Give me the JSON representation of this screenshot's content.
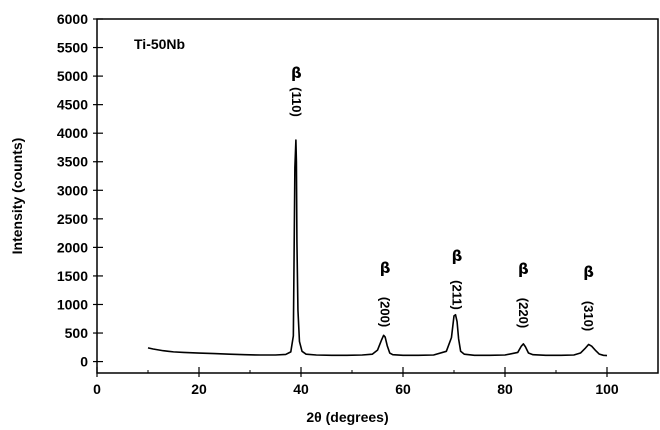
{
  "chart_data": {
    "type": "line",
    "title": "",
    "xlabel": "2θ (degrees)",
    "ylabel": "Intensity (counts)",
    "xlim": [
      0,
      110
    ],
    "ylim": [
      -200,
      6000
    ],
    "x_ticks": [
      0,
      20,
      40,
      60,
      80,
      100
    ],
    "y_ticks": [
      0,
      500,
      1000,
      1500,
      2000,
      2500,
      3000,
      3500,
      4000,
      4500,
      5000,
      5500,
      6000
    ],
    "grid": false,
    "sample_label": "Ti-50Nb",
    "series": [
      {
        "color": "#000000",
        "x": [
          10,
          11,
          12,
          13,
          14,
          15,
          17,
          20,
          23,
          26,
          29,
          32,
          35,
          37,
          38,
          38.5,
          38.8,
          39.0,
          39.1,
          39.2,
          39.4,
          39.7,
          40.2,
          41,
          43,
          46,
          49,
          52,
          54,
          55,
          55.8,
          56.2,
          56.5,
          56.9,
          57.4,
          58,
          60,
          63,
          66,
          68.5,
          69.5,
          70,
          70.3,
          70.6,
          70.9,
          71.3,
          72,
          74,
          77,
          80,
          82.5,
          83.2,
          83.6,
          84.0,
          84.6,
          85.5,
          88,
          91,
          93.5,
          94.8,
          95.8,
          96.4,
          97.0,
          97.8,
          98.5,
          99.3,
          100
        ],
        "y": [
          240,
          220,
          205,
          190,
          180,
          170,
          160,
          150,
          140,
          130,
          120,
          115,
          115,
          125,
          170,
          450,
          3400,
          3880,
          3500,
          2100,
          900,
          350,
          180,
          130,
          115,
          110,
          110,
          115,
          130,
          200,
          380,
          460,
          430,
          280,
          150,
          120,
          110,
          110,
          115,
          180,
          420,
          800,
          820,
          700,
          400,
          180,
          130,
          110,
          110,
          115,
          160,
          270,
          310,
          260,
          150,
          120,
          110,
          110,
          115,
          150,
          240,
          300,
          270,
          190,
          130,
          110,
          105
        ]
      }
    ],
    "peaks": [
      {
        "phase": "β",
        "hkl": "(110)",
        "two_theta": 39.1
      },
      {
        "phase": "β",
        "hkl": "(200)",
        "two_theta": 56.5
      },
      {
        "phase": "β",
        "hkl": "(211)",
        "two_theta": 70.6
      },
      {
        "phase": "β",
        "hkl": "(220)",
        "two_theta": 83.6
      },
      {
        "phase": "β",
        "hkl": "(310)",
        "two_theta": 96.4
      }
    ]
  }
}
